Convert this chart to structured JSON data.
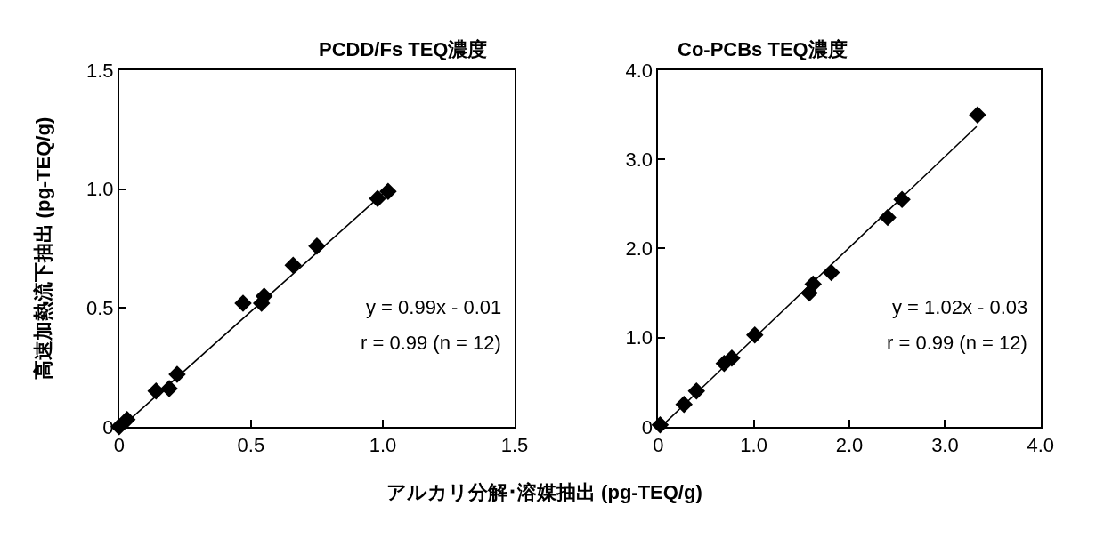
{
  "chart_data": [
    {
      "type": "scatter",
      "title": "PCDD/Fs TEQ濃度",
      "xlabel": "アルカリ分解･溶媒抽出 (pg-TEQ/g)",
      "ylabel": "高速加熱流下抽出 (pg-TEQ/g)",
      "marker": "diamond",
      "xlim": [
        0,
        1.5
      ],
      "ylim": [
        0,
        1.5
      ],
      "xticks": [
        0,
        {
          "value": 0.5,
          "label": "0.5"
        },
        {
          "value": 1.0,
          "label": "1.0"
        },
        {
          "value": 1.5,
          "label": "1.5"
        }
      ],
      "yticks": [
        0,
        {
          "value": 0.5,
          "label": "0.5"
        },
        {
          "value": 1.0,
          "label": "1.0"
        },
        {
          "value": 1.5,
          "label": "1.5"
        }
      ],
      "series": [
        {
          "color": "#000000",
          "x": [
            0,
            0.03,
            0.14,
            0.19,
            0.22,
            0.47,
            0.54,
            0.55,
            0.66,
            0.75,
            0.98,
            1.02
          ],
          "values": [
            0,
            0.03,
            0.15,
            0.16,
            0.22,
            0.52,
            0.52,
            0.55,
            0.68,
            0.76,
            0.96,
            0.99
          ]
        },
        {
          "type": "line",
          "marker": "none",
          "color": "#000000",
          "x": [
            0.01,
            1.02
          ],
          "values": [
            0.0,
            1.0
          ]
        }
      ],
      "annotations": [
        "y = 0.99x - 0.01",
        "r = 0.99 (n = 12)"
      ]
    },
    {
      "type": "scatter",
      "title": "Co-PCBs TEQ濃度",
      "marker": "diamond",
      "xlim": [
        0,
        4.0
      ],
      "ylim": [
        0,
        4.0
      ],
      "xticks": [
        0,
        {
          "value": 1.0,
          "label": "1.0"
        },
        {
          "value": 2.0,
          "label": "2.0"
        },
        {
          "value": 3.0,
          "label": "3.0"
        },
        {
          "value": 4.0,
          "label": "4.0"
        }
      ],
      "yticks": [
        0,
        {
          "value": 1.0,
          "label": "1.0"
        },
        {
          "value": 2.0,
          "label": "2.0"
        },
        {
          "value": 3.0,
          "label": "3.0"
        },
        {
          "value": 4.0,
          "label": "4.0"
        }
      ],
      "series": [
        {
          "color": "#000000",
          "x": [
            0.02,
            0.27,
            0.4,
            0.69,
            0.77,
            1.01,
            1.58,
            1.62,
            1.81,
            2.4,
            2.55,
            3.34
          ],
          "values": [
            0.02,
            0.25,
            0.4,
            0.71,
            0.77,
            1.03,
            1.5,
            1.6,
            1.73,
            2.35,
            2.55,
            3.5
          ]
        },
        {
          "type": "line",
          "marker": "none",
          "color": "#000000",
          "x": [
            0.03,
            3.33
          ],
          "values": [
            0.0,
            3.37
          ]
        }
      ],
      "annotations": [
        "y = 1.02x - 0.03",
        "r = 0.99 (n = 12)"
      ]
    }
  ]
}
